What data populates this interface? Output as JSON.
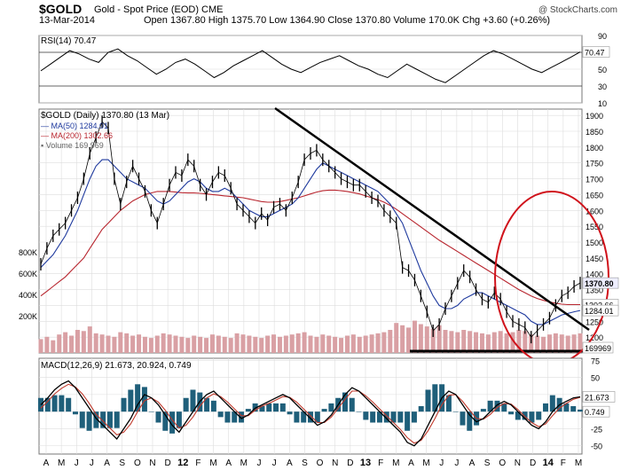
{
  "header": {
    "symbol": "$GOLD",
    "description": "Gold - Spot Price (EOD)  CME",
    "copyright": "@ StockCharts.com",
    "date": "13-Mar-2014",
    "ohlc_text": "Open 1367.80  High 1375.70  Low 1364.90  Close 1370.80  Volume 170.0K  Chg +3.60 (+0.26%)",
    "open": 1367.8,
    "high": 1375.7,
    "low": 1364.9,
    "close": 1370.8,
    "volume": "170.0K",
    "change": "+3.60 (+0.26%)"
  },
  "colors": {
    "price": "#000000",
    "ma50": "#1f3a9e",
    "ma200": "#b8262f",
    "volume": "#d9a0a4",
    "rsi": "#000000",
    "macd": "#000000",
    "signal": "#c0392b",
    "histogram": "#1f5f7a",
    "annotation": "#d0121b",
    "trendline": "#000000",
    "grid": "#dddddd"
  },
  "chart_data": [
    {
      "type": "line",
      "panel": "rsi",
      "label": "RSI(14) 70.47",
      "ylim": [
        10,
        90
      ],
      "yticks": [
        90,
        70,
        50,
        30,
        10
      ],
      "reference_lines": [
        70,
        30
      ],
      "last_value": "70.47",
      "values": [
        48,
        56,
        64,
        72,
        68,
        62,
        58,
        70,
        74,
        66,
        60,
        52,
        44,
        50,
        58,
        62,
        56,
        48,
        40,
        46,
        54,
        60,
        66,
        72,
        64,
        56,
        50,
        46,
        52,
        58,
        62,
        66,
        60,
        54,
        50,
        44,
        40,
        48,
        56,
        50,
        44,
        38,
        34,
        42,
        50,
        58,
        66,
        72,
        68,
        62,
        56,
        50,
        46,
        52,
        58,
        64,
        70.47
      ]
    },
    {
      "type": "line",
      "panel": "price",
      "title": "$GOLD (Daily) 1370.80 (13 Mar)",
      "legend": [
        "MA(50) 1284.01",
        "MA(200) 1302.66",
        "Volume 169,969"
      ],
      "ylim": [
        1150,
        1920
      ],
      "yticks": [
        1900,
        1850,
        1800,
        1750,
        1700,
        1650,
        1600,
        1550,
        1500,
        1450,
        1400,
        1350,
        1300,
        1250,
        1200
      ],
      "volume_ticks": [
        "800K",
        "600K",
        "400K",
        "200K"
      ],
      "value_tags": [
        "1370.80",
        "1302.66",
        "1284.01",
        "169969"
      ],
      "x_labels": [
        "A",
        "M",
        "J",
        "J",
        "A",
        "S",
        "O",
        "N",
        "D",
        "12",
        "F",
        "M",
        "A",
        "M",
        "J",
        "J",
        "A",
        "S",
        "O",
        "N",
        "D",
        "13",
        "F",
        "M",
        "A",
        "M",
        "J",
        "J",
        "A",
        "S",
        "O",
        "N",
        "D",
        "14",
        "F",
        "M"
      ],
      "series": [
        {
          "name": "Price",
          "values": [
            1430,
            1480,
            1520,
            1540,
            1560,
            1600,
            1640,
            1700,
            1780,
            1830,
            1880,
            1860,
            1700,
            1620,
            1690,
            1740,
            1700,
            1660,
            1600,
            1560,
            1620,
            1680,
            1720,
            1710,
            1760,
            1740,
            1680,
            1650,
            1690,
            1720,
            1710,
            1670,
            1620,
            1600,
            1580,
            1560,
            1590,
            1570,
            1610,
            1620,
            1600,
            1640,
            1690,
            1760,
            1780,
            1790,
            1760,
            1740,
            1720,
            1700,
            1690,
            1680,
            1680,
            1660,
            1640,
            1630,
            1600,
            1580,
            1560,
            1420,
            1410,
            1380,
            1330,
            1280,
            1220,
            1240,
            1290,
            1330,
            1370,
            1410,
            1390,
            1350,
            1320,
            1310,
            1340,
            1320,
            1280,
            1250,
            1240,
            1230,
            1200,
            1220,
            1240,
            1260,
            1300,
            1330,
            1340,
            1360,
            1370.8
          ]
        },
        {
          "name": "MA(50)",
          "values": [
            1420,
            1440,
            1460,
            1490,
            1520,
            1560,
            1600,
            1650,
            1700,
            1740,
            1760,
            1760,
            1740,
            1720,
            1700,
            1690,
            1680,
            1670,
            1650,
            1630,
            1620,
            1630,
            1650,
            1670,
            1690,
            1700,
            1690,
            1670,
            1660,
            1660,
            1670,
            1660,
            1640,
            1620,
            1600,
            1590,
            1580,
            1580,
            1590,
            1600,
            1610,
            1620,
            1640,
            1670,
            1700,
            1730,
            1750,
            1740,
            1730,
            1720,
            1710,
            1700,
            1690,
            1680,
            1670,
            1660,
            1640,
            1620,
            1590,
            1560,
            1510,
            1460,
            1410,
            1370,
            1330,
            1300,
            1290,
            1290,
            1300,
            1320,
            1330,
            1340,
            1340,
            1330,
            1320,
            1310,
            1300,
            1290,
            1280,
            1270,
            1250,
            1240,
            1240,
            1250,
            1260,
            1270,
            1275,
            1280,
            1284.01
          ]
        },
        {
          "name": "MA(200)",
          "values": [
            1330,
            1345,
            1360,
            1375,
            1390,
            1410,
            1430,
            1450,
            1480,
            1510,
            1540,
            1560,
            1580,
            1600,
            1615,
            1630,
            1640,
            1650,
            1655,
            1660,
            1660,
            1660,
            1658,
            1656,
            1655,
            1655,
            1654,
            1652,
            1650,
            1648,
            1646,
            1644,
            1642,
            1640,
            1636,
            1632,
            1628,
            1626,
            1626,
            1628,
            1632,
            1636,
            1640,
            1646,
            1652,
            1658,
            1662,
            1664,
            1664,
            1662,
            1660,
            1656,
            1652,
            1646,
            1640,
            1634,
            1626,
            1616,
            1604,
            1590,
            1576,
            1562,
            1548,
            1534,
            1520,
            1506,
            1494,
            1482,
            1470,
            1458,
            1446,
            1434,
            1422,
            1410,
            1398,
            1386,
            1374,
            1362,
            1350,
            1340,
            1330,
            1322,
            1316,
            1311,
            1307,
            1304,
            1302.66,
            1302.66,
            1302.66
          ]
        },
        {
          "name": "Volume",
          "values": [
            120,
            140,
            110,
            160,
            180,
            150,
            200,
            190,
            230,
            170,
            160,
            150,
            140,
            180,
            170,
            150,
            160,
            140,
            130,
            150,
            170,
            160,
            150,
            140,
            130,
            150,
            140,
            130,
            160,
            150,
            140,
            130,
            170,
            160,
            150,
            140,
            130,
            150,
            160,
            140,
            150,
            160,
            170,
            180,
            150,
            140,
            160,
            150,
            140,
            130,
            150,
            160,
            140,
            150,
            160,
            170,
            180,
            200,
            260,
            240,
            220,
            280,
            250,
            230,
            210,
            240,
            200,
            190,
            180,
            200,
            190,
            180,
            170,
            160,
            180,
            190,
            170,
            180,
            200,
            190,
            160,
            150,
            140,
            160,
            170,
            160,
            150,
            160,
            170
          ]
        }
      ],
      "annotations": [
        "descending trendline",
        "horizontal support line",
        "red oval highlight"
      ]
    },
    {
      "type": "line",
      "panel": "macd",
      "label": "MACD(12,26,9) 21.673, 20.924, 0.749",
      "ylim": [
        -62,
        78
      ],
      "yticks": [
        75,
        50,
        25,
        0,
        -25,
        -50
      ],
      "value_tags": [
        "21.673",
        "0.749"
      ],
      "x_labels": [
        "A",
        "M",
        "J",
        "J",
        "A",
        "S",
        "O",
        "N",
        "D",
        "12",
        "F",
        "M",
        "A",
        "M",
        "J",
        "J",
        "A",
        "S",
        "O",
        "N",
        "D",
        "13",
        "F",
        "M",
        "A",
        "M",
        "J",
        "J",
        "A",
        "S",
        "O",
        "N",
        "D",
        "14",
        "F",
        "M"
      ],
      "series": [
        {
          "name": "MACD",
          "values": [
            10,
            20,
            32,
            40,
            45,
            35,
            20,
            5,
            -10,
            -20,
            -30,
            -40,
            -25,
            -10,
            10,
            25,
            20,
            10,
            -5,
            -20,
            -30,
            -15,
            0,
            15,
            25,
            30,
            20,
            10,
            0,
            -10,
            -5,
            5,
            10,
            15,
            20,
            25,
            20,
            10,
            0,
            -10,
            -20,
            -15,
            -5,
            10,
            25,
            35,
            30,
            20,
            10,
            0,
            -10,
            -20,
            -30,
            -45,
            -50,
            -40,
            -20,
            0,
            20,
            30,
            25,
            10,
            -5,
            -15,
            -10,
            0,
            10,
            15,
            10,
            0,
            -10,
            -20,
            -25,
            -15,
            0,
            10,
            15,
            20,
            21.673
          ]
        },
        {
          "name": "Signal",
          "values": [
            5,
            15,
            26,
            34,
            40,
            36,
            26,
            12,
            -4,
            -14,
            -24,
            -34,
            -30,
            -18,
            0,
            16,
            20,
            14,
            2,
            -12,
            -24,
            -20,
            -8,
            8,
            20,
            26,
            22,
            14,
            4,
            -6,
            -6,
            2,
            8,
            12,
            17,
            22,
            21,
            14,
            4,
            -6,
            -16,
            -16,
            -8,
            5,
            18,
            30,
            30,
            23,
            14,
            4,
            -6,
            -16,
            -26,
            -38,
            -46,
            -42,
            -28,
            -10,
            10,
            24,
            25,
            15,
            2,
            -10,
            -11,
            -4,
            6,
            12,
            11,
            3,
            -7,
            -16,
            -22,
            -18,
            -6,
            5,
            12,
            18,
            20.924
          ]
        }
      ]
    }
  ]
}
